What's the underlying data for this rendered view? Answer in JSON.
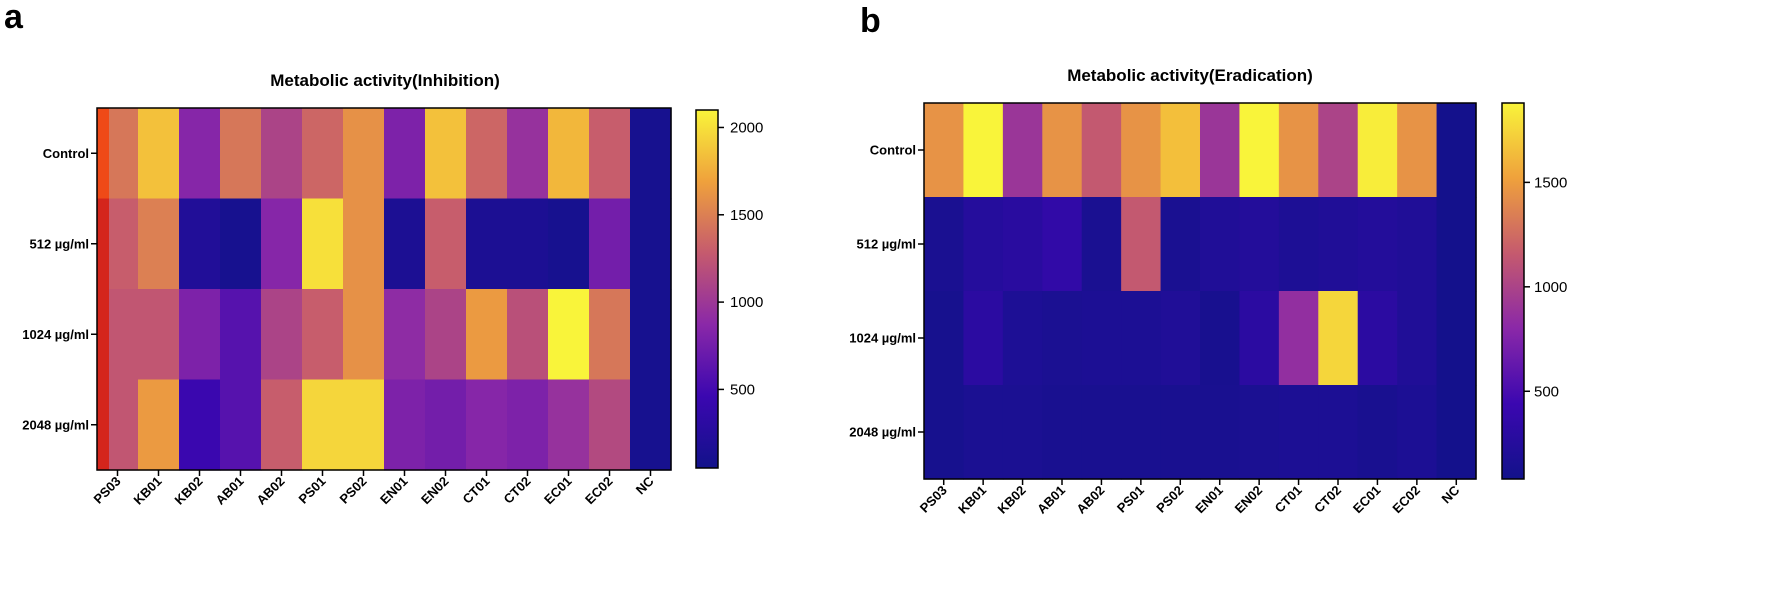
{
  "chart_data": [
    {
      "type": "heatmap",
      "panel": "a",
      "title": "Metabolic activity(Inhibition)",
      "columns": [
        "PS03",
        "KB01",
        "KB02",
        "AB01",
        "AB02",
        "PS01",
        "PS02",
        "EN01",
        "EN02",
        "CT01",
        "CT02",
        "EC01",
        "EC02",
        "NC"
      ],
      "rows": [
        "Control",
        "512 µg/ml",
        "1024 µg/ml",
        "2048 µg/ml"
      ],
      "values": [
        [
          1450,
          1850,
          850,
          1450,
          1100,
          1350,
          1600,
          800,
          1850,
          1350,
          950,
          1800,
          1300,
          100
        ],
        [
          1300,
          1500,
          200,
          100,
          850,
          2000,
          1600,
          150,
          1300,
          150,
          150,
          100,
          750,
          100
        ],
        [
          1250,
          1250,
          800,
          600,
          1100,
          1300,
          1600,
          900,
          1100,
          1650,
          1200,
          2100,
          1450,
          100
        ],
        [
          1250,
          1650,
          450,
          600,
          1300,
          1950,
          1950,
          800,
          750,
          850,
          800,
          950,
          1150,
          100
        ]
      ],
      "colorbar": {
        "min": 50,
        "max": 2100,
        "ticks": [
          500,
          1000,
          1500,
          2000
        ]
      },
      "colormap": "plasma"
    },
    {
      "type": "heatmap",
      "panel": "b",
      "title": "Metabolic activity(Eradication)",
      "columns": [
        "PS03",
        "KB01",
        "KB02",
        "AB01",
        "AB02",
        "PS01",
        "PS02",
        "EN01",
        "EN02",
        "CT01",
        "CT02",
        "EC01",
        "EC02",
        "NC"
      ],
      "rows": [
        "Control",
        "512 µg/ml",
        "1024 µg/ml",
        "2048 µg/ml"
      ],
      "values": [
        [
          1450,
          1900,
          900,
          1450,
          1150,
          1450,
          1650,
          900,
          1900,
          1450,
          1000,
          1850,
          1450,
          100
        ],
        [
          150,
          250,
          280,
          350,
          150,
          1150,
          150,
          200,
          230,
          180,
          200,
          230,
          200,
          100
        ],
        [
          120,
          300,
          180,
          160,
          170,
          170,
          200,
          130,
          300,
          850,
          1750,
          300,
          200,
          100
        ],
        [
          120,
          160,
          160,
          140,
          140,
          140,
          140,
          140,
          160,
          170,
          170,
          140,
          170,
          100
        ]
      ],
      "colorbar": {
        "min": 80,
        "max": 1880,
        "ticks": [
          500,
          1000,
          1500
        ]
      },
      "colormap": "plasma"
    }
  ]
}
